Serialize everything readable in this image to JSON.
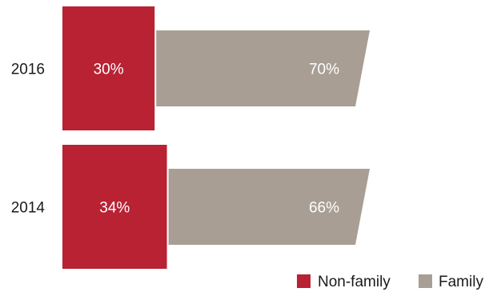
{
  "chart_data": {
    "type": "bar",
    "orientation": "horizontal",
    "stacked": true,
    "categories": [
      "2016",
      "2014"
    ],
    "series": [
      {
        "name": "Non-family",
        "values": [
          30,
          34
        ],
        "labels": [
          "30%",
          "34%"
        ],
        "color": "#b82233"
      },
      {
        "name": "Family",
        "values": [
          70,
          66
        ],
        "labels": [
          "70%",
          "66%"
        ],
        "color": "#a89e94"
      }
    ],
    "unit": "%",
    "xlim": [
      0,
      100
    ],
    "grid": false,
    "legend": "bottom-right"
  }
}
